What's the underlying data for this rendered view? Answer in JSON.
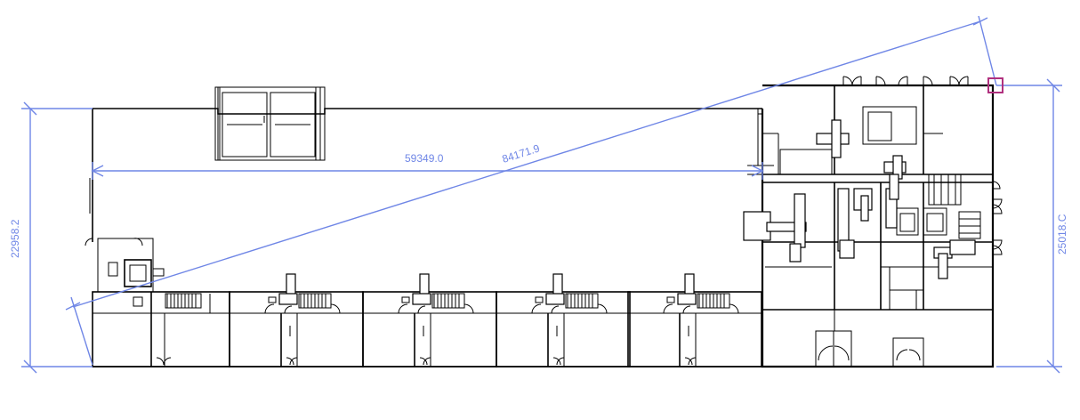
{
  "colors": {
    "dimension": "#6f86e6",
    "walls": "#000000",
    "selection_marker": "#b0307e",
    "background": "#ffffff"
  },
  "dimensions": {
    "horizontal_length": "59349.0",
    "diagonal_length": "84171.9",
    "left_height": "22958.2",
    "right_height": "25018.C"
  },
  "icons": {
    "selection_marker": "square-marker-icon"
  }
}
